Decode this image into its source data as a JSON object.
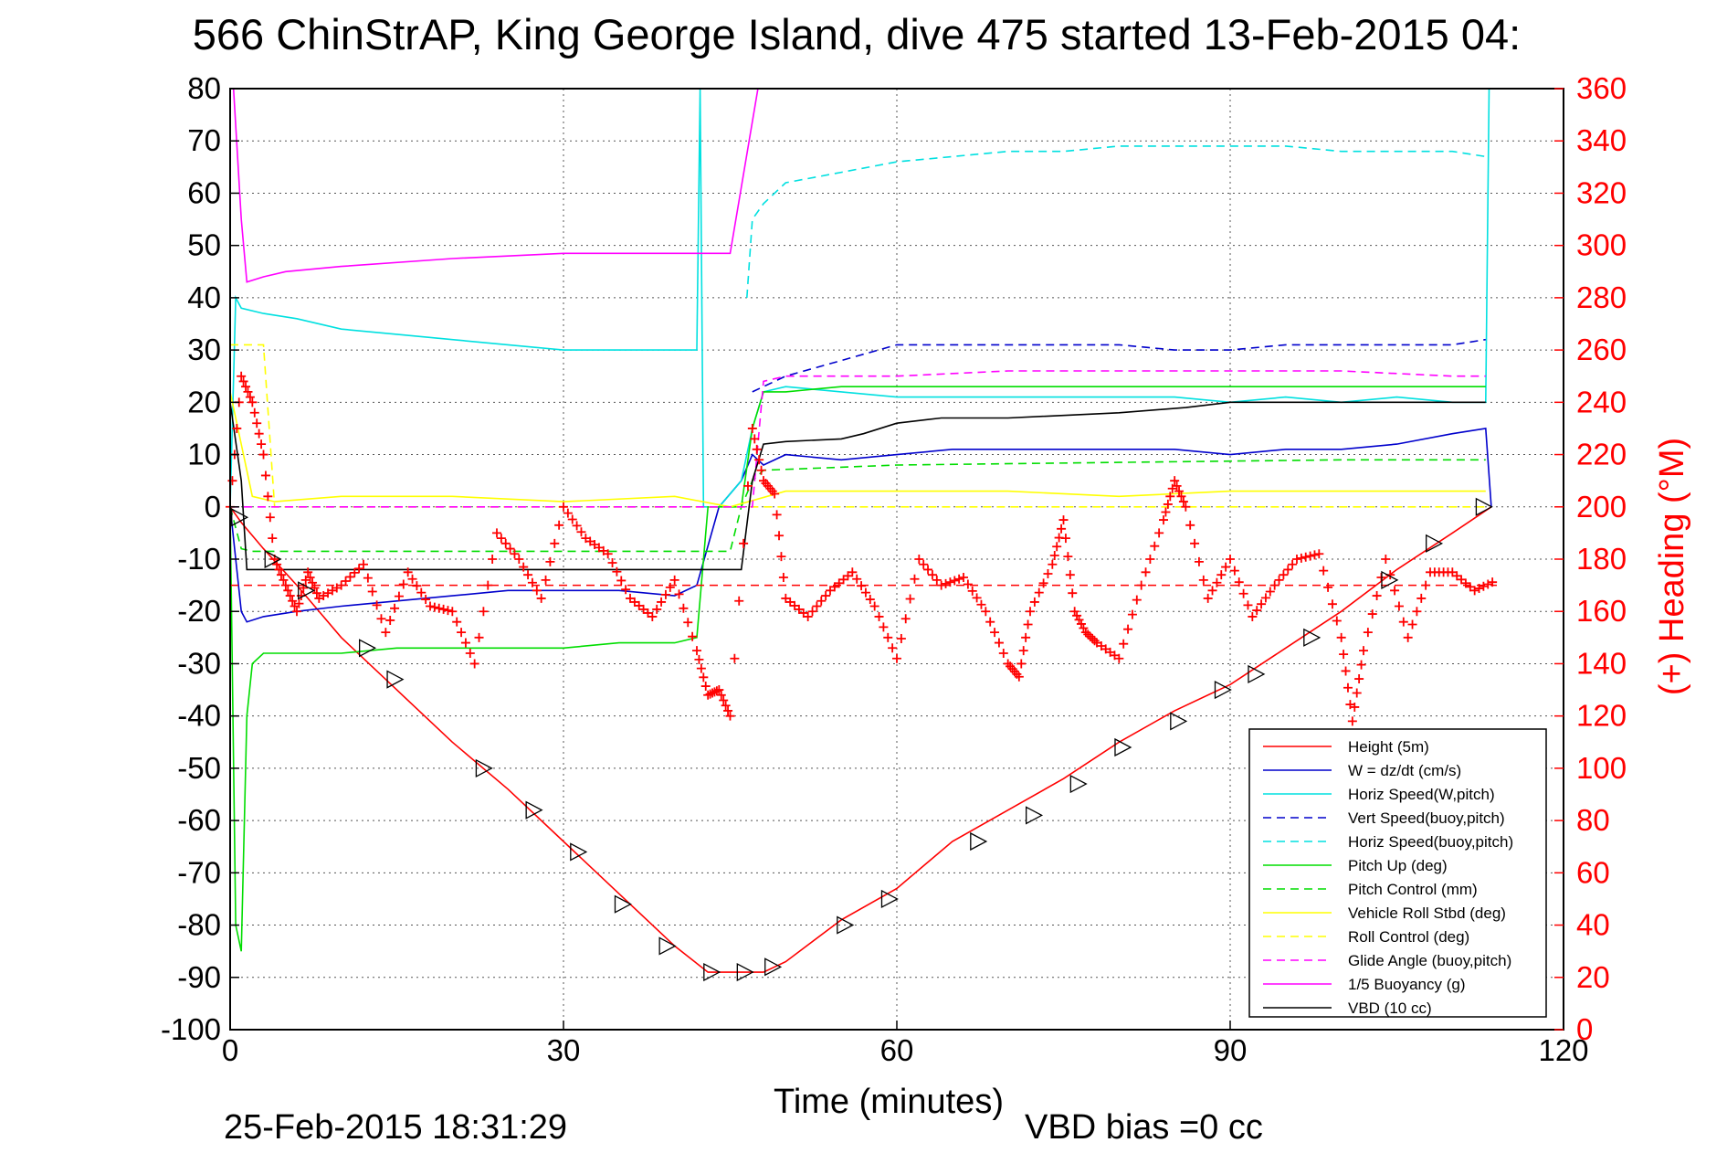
{
  "chart_data": {
    "type": "line",
    "title": "566 ChinStrAP, King George Island, dive 475 started 13-Feb-2015 04:",
    "xlabel": "Time (minutes)",
    "ylabel": "",
    "ylabel_right": "(+) Heading (°M)",
    "xlim": [
      0,
      120
    ],
    "ylim": [
      -100,
      80
    ],
    "ylim_right": [
      0,
      360
    ],
    "xticks": [
      "0",
      "30",
      "60",
      "90",
      "120"
    ],
    "yticks": [
      "80",
      "70",
      "60",
      "50",
      "40",
      "30",
      "20",
      "10",
      "0",
      "-10",
      "-20",
      "-30",
      "-40",
      "-50",
      "-60",
      "-70",
      "-80",
      "-90",
      "-100"
    ],
    "yticks_right": [
      "360",
      "340",
      "320",
      "300",
      "280",
      "260",
      "240",
      "220",
      "200",
      "180",
      "160",
      "140",
      "120",
      "100",
      "80",
      "60",
      "40",
      "20",
      "0"
    ],
    "grid": true,
    "legend_position": "bottom-right",
    "footer_date": "25-Feb-2015 18:31:29",
    "footer_note": "VBD bias =0 cc",
    "colors": {
      "height": "#ff0000",
      "w": "#0000cc",
      "horiz_speed": "#00e0e0",
      "vert_speed_buoy": "#0000cc",
      "horiz_speed_buoy": "#00e0e0",
      "pitch_up": "#00dd00",
      "pitch_control": "#00dd00",
      "roll_stbd": "#ffff00",
      "roll_control": "#ffff00",
      "glide_angle": "#ff00ff",
      "buoyancy": "#ff00ff",
      "vbd": "#000000",
      "heading": "#ff0000"
    },
    "series": [
      {
        "key": "height",
        "name": "Height (5m)",
        "style": "solid",
        "x": [
          0,
          1,
          3,
          6,
          10,
          15,
          20,
          25,
          30,
          35,
          40,
          43,
          45,
          46,
          48,
          50,
          55,
          60,
          65,
          70,
          75,
          80,
          85,
          90,
          95,
          100,
          105,
          110,
          113.5
        ],
        "y": [
          0,
          -3,
          -8,
          -15,
          -25,
          -35,
          -45,
          -54,
          -64,
          -74,
          -84,
          -89,
          -89,
          -89,
          -89,
          -87,
          -79,
          -73,
          -64,
          -58,
          -52,
          -45,
          -39,
          -34,
          -27,
          -20,
          -12,
          -5,
          0
        ]
      },
      {
        "key": "w",
        "name": "W = dz/dt (cm/s)",
        "style": "solid",
        "x": [
          0,
          1,
          1.5,
          3,
          6,
          10,
          15,
          20,
          25,
          30,
          35,
          40,
          42,
          44,
          46,
          47,
          48,
          50,
          55,
          60,
          65,
          70,
          75,
          80,
          85,
          90,
          95,
          100,
          105,
          110,
          113,
          113.5
        ],
        "y": [
          0,
          -20,
          -22,
          -21,
          -20,
          -19,
          -18,
          -17,
          -16,
          -16,
          -16,
          -17,
          -15,
          0,
          5,
          10,
          8,
          10,
          9,
          10,
          11,
          11,
          11,
          11,
          11,
          10,
          11,
          11,
          12,
          14,
          15,
          0
        ]
      },
      {
        "key": "horiz_speed",
        "name": "Horiz Speed(W,pitch)",
        "style": "solid",
        "x": [
          0,
          0.5,
          1,
          3,
          6,
          10,
          15,
          20,
          25,
          30,
          35,
          40,
          42,
          42.3,
          42.6,
          44,
          46,
          47,
          48,
          50,
          55,
          60,
          65,
          70,
          75,
          80,
          85,
          90,
          95,
          100,
          105,
          110,
          113,
          113.3
        ],
        "y": [
          0,
          40,
          38,
          37,
          36,
          34,
          33,
          32,
          31,
          30,
          30,
          30,
          30,
          80,
          0,
          0,
          5,
          15,
          22,
          23,
          22,
          21,
          21,
          21,
          21,
          21,
          21,
          20,
          21,
          20,
          21,
          20,
          20,
          80
        ]
      },
      {
        "key": "vert_speed_buoy",
        "name": "Vert Speed(buoy,pitch)",
        "style": "dashed",
        "x": [
          47,
          50,
          55,
          60,
          65,
          70,
          75,
          80,
          85,
          90,
          95,
          100,
          105,
          110,
          113
        ],
        "y": [
          22,
          25,
          28,
          31,
          31,
          31,
          31,
          31,
          30,
          30,
          31,
          31,
          31,
          31,
          32
        ]
      },
      {
        "key": "horiz_speed_buoy",
        "name": "Horiz Speed(buoy,pitch)",
        "style": "dashed",
        "x": [
          46.5,
          47,
          48,
          50,
          55,
          60,
          65,
          70,
          75,
          80,
          85,
          90,
          95,
          100,
          105,
          110,
          113
        ],
        "y": [
          40,
          55,
          58,
          62,
          64,
          66,
          67,
          68,
          68,
          69,
          69,
          69,
          69,
          68,
          68,
          68,
          67
        ]
      },
      {
        "key": "pitch_up",
        "name": "Pitch Up (deg)",
        "style": "solid",
        "x": [
          0,
          0.5,
          1,
          1.5,
          2,
          3,
          6,
          10,
          15,
          20,
          25,
          30,
          35,
          40,
          42,
          43,
          45,
          46,
          47,
          48,
          50,
          55,
          60,
          65,
          70,
          75,
          80,
          85,
          90,
          95,
          100,
          105,
          110,
          113
        ],
        "y": [
          0,
          -80,
          -85,
          -40,
          -30,
          -28,
          -28,
          -28,
          -27,
          -27,
          -27,
          -27,
          -26,
          -26,
          -25,
          0,
          0,
          0,
          15,
          22,
          22,
          23,
          23,
          23,
          23,
          23,
          23,
          23,
          23,
          23,
          23,
          23,
          23,
          23
        ]
      },
      {
        "key": "pitch_control",
        "name": "Pitch Control (mm)",
        "style": "dashed",
        "x": [
          0,
          1,
          2,
          10,
          20,
          30,
          40,
          45,
          46,
          47,
          48,
          60,
          80,
          100,
          113
        ],
        "y": [
          0,
          -8,
          -8.5,
          -8.5,
          -8.5,
          -8.5,
          -8.5,
          -8.5,
          0,
          5,
          7,
          8,
          8.5,
          9,
          9
        ]
      },
      {
        "key": "roll_stbd",
        "name": "Vehicle Roll Stbd (deg)",
        "style": "solid",
        "x": [
          0,
          2,
          4,
          10,
          20,
          30,
          40,
          45,
          50,
          60,
          70,
          80,
          90,
          100,
          110,
          113
        ],
        "y": [
          22,
          2,
          1,
          2,
          2,
          1,
          2,
          0,
          3,
          3,
          3,
          2,
          3,
          3,
          3,
          3
        ]
      },
      {
        "key": "roll_control",
        "name": "Roll Control (deg)",
        "style": "dashed",
        "x": [
          0,
          1,
          2,
          3,
          4,
          10,
          20,
          30,
          40,
          50,
          60,
          70,
          80,
          90,
          100,
          110,
          113
        ],
        "y": [
          31,
          31,
          31,
          31,
          0,
          0,
          0,
          0,
          0,
          0,
          0,
          0,
          0,
          0,
          0,
          0,
          0
        ]
      },
      {
        "key": "glide_angle",
        "name": "Glide Angle (buoy,pitch)",
        "style": "dashed",
        "x": [
          0,
          47,
          48,
          50,
          60,
          70,
          80,
          90,
          100,
          110,
          113
        ],
        "y": [
          0,
          0,
          24,
          25,
          25,
          26,
          26,
          26,
          26,
          25,
          25
        ]
      },
      {
        "key": "buoyancy",
        "name": "1/5 Buoyancy (g)",
        "style": "solid",
        "x": [
          0.3,
          1,
          1.5,
          3,
          5,
          10,
          20,
          30,
          40,
          45,
          47.5
        ],
        "y": [
          80,
          55,
          43,
          44,
          45,
          46,
          47.5,
          48.5,
          48.5,
          48.5,
          80
        ]
      },
      {
        "key": "vbd",
        "name": "VBD (10 cc)",
        "style": "solid",
        "x": [
          0,
          1,
          1.5,
          5,
          10,
          20,
          30,
          40,
          45,
          46,
          47,
          48,
          50,
          55,
          57,
          60,
          64,
          70,
          80,
          86,
          90,
          100,
          113
        ],
        "y": [
          20,
          5,
          -12,
          -12,
          -12,
          -12,
          -12,
          -12,
          -12,
          -12,
          5,
          12,
          12.5,
          13,
          14,
          16,
          17,
          17,
          18,
          19,
          20,
          20,
          20
        ]
      }
    ],
    "heading": {
      "name": "(+) Heading (°M)",
      "mean": 170,
      "x": [
        0,
        1,
        2,
        3,
        4,
        5,
        6,
        7,
        8,
        10,
        12,
        14,
        16,
        18,
        20,
        22,
        24,
        26,
        28,
        30,
        32,
        34,
        36,
        38,
        40,
        42,
        43,
        44,
        45,
        47,
        48,
        49,
        50,
        52,
        54,
        56,
        58,
        60,
        62,
        64,
        66,
        68,
        70,
        71,
        72,
        74,
        75,
        76,
        77,
        78,
        80,
        82,
        84,
        85,
        86,
        88,
        90,
        92,
        94,
        96,
        98,
        100,
        101,
        102,
        104,
        106,
        108,
        110,
        112,
        114
      ],
      "y": [
        200,
        250,
        240,
        220,
        180,
        170,
        160,
        175,
        165,
        170,
        178,
        152,
        175,
        162,
        160,
        140,
        190,
        180,
        165,
        200,
        188,
        182,
        165,
        158,
        172,
        145,
        128,
        130,
        120,
        230,
        210,
        205,
        165,
        158,
        168,
        175,
        162,
        142,
        180,
        170,
        173,
        160,
        140,
        135,
        160,
        178,
        195,
        160,
        152,
        148,
        142,
        170,
        195,
        210,
        200,
        165,
        180,
        158,
        170,
        180,
        182,
        150,
        118,
        145,
        180,
        150,
        175,
        175,
        168,
        172
      ]
    },
    "triangles": {
      "x": [
        0.8,
        3.8,
        6.8,
        12.3,
        14.8,
        22.8,
        27.3,
        31.3,
        35.3,
        39.3,
        43.3,
        46.3,
        48.8,
        55.3,
        59.3,
        67.3,
        72.3,
        76.3,
        80.3,
        85.3,
        89.3,
        92.3,
        97.3,
        104.3,
        108.3,
        112.8
      ],
      "y": [
        -2,
        -10,
        -16,
        -27,
        -33,
        -50,
        -58,
        -66,
        -76,
        -84,
        -89,
        -89,
        -88,
        -80,
        -75,
        -64,
        -59,
        -53,
        -46,
        -41,
        -35,
        -32,
        -25,
        -14,
        -7,
        0
      ]
    }
  }
}
